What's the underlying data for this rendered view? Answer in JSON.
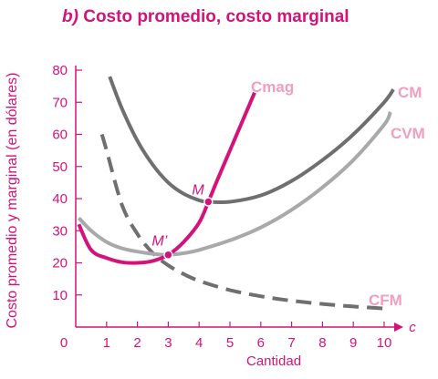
{
  "chart_data": {
    "type": "line",
    "title_prefix": "b)",
    "title": "Costo promedio, costo marginal",
    "xlabel": "Cantidad",
    "ylabel": "Costo promedio y marginal (en dólares)",
    "axis_end_label": "c",
    "xlim": [
      0,
      10.5
    ],
    "ylim": [
      0,
      80
    ],
    "x_ticks": [
      "0",
      "1",
      "2",
      "3",
      "4",
      "5",
      "6",
      "7",
      "8",
      "9",
      "10"
    ],
    "y_ticks": [
      "10",
      "20",
      "30",
      "40",
      "50",
      "60",
      "70",
      "80"
    ],
    "grid": false,
    "series": [
      {
        "name": "Cmag",
        "color": "#d4137a",
        "style": "solid",
        "points": [
          [
            0.1,
            32
          ],
          [
            0.5,
            24
          ],
          [
            1.0,
            21.5
          ],
          [
            1.5,
            20.2
          ],
          [
            2.0,
            20
          ],
          [
            2.5,
            20.6
          ],
          [
            3.0,
            22.5
          ],
          [
            3.5,
            26.5
          ],
          [
            4.0,
            32.5
          ],
          [
            4.3,
            39
          ],
          [
            4.6,
            46
          ],
          [
            5.0,
            55
          ],
          [
            5.4,
            64
          ],
          [
            5.8,
            73
          ]
        ]
      },
      {
        "name": "CM",
        "color": "#6f6f72",
        "style": "solid",
        "points": [
          [
            1.1,
            78
          ],
          [
            1.5,
            68
          ],
          [
            2.0,
            58
          ],
          [
            2.5,
            50.5
          ],
          [
            3.0,
            45
          ],
          [
            3.5,
            41.5
          ],
          [
            4.0,
            39.5
          ],
          [
            4.3,
            39
          ],
          [
            5.0,
            39
          ],
          [
            6.0,
            41
          ],
          [
            7.0,
            45.5
          ],
          [
            8.0,
            52
          ],
          [
            9.0,
            60
          ],
          [
            10.0,
            70
          ],
          [
            10.3,
            74
          ]
        ]
      },
      {
        "name": "CVM",
        "color": "#a8a9ab",
        "style": "solid",
        "points": [
          [
            0.1,
            34
          ],
          [
            0.5,
            30
          ],
          [
            1.0,
            26.5
          ],
          [
            1.5,
            24.5
          ],
          [
            2.0,
            23.5
          ],
          [
            2.5,
            22.8
          ],
          [
            3.0,
            22.5
          ],
          [
            3.5,
            23
          ],
          [
            4.0,
            24
          ],
          [
            5.0,
            27
          ],
          [
            6.0,
            31
          ],
          [
            7.0,
            36.5
          ],
          [
            8.0,
            43.5
          ],
          [
            9.0,
            52
          ],
          [
            10.0,
            63
          ],
          [
            10.2,
            67
          ]
        ]
      },
      {
        "name": "CFM",
        "color": "#6f6f72",
        "style": "dashed",
        "points": [
          [
            0.85,
            60
          ],
          [
            1.0,
            55
          ],
          [
            1.5,
            38
          ],
          [
            2.0,
            29
          ],
          [
            2.5,
            23
          ],
          [
            3.0,
            19.2
          ],
          [
            3.5,
            16.5
          ],
          [
            4.0,
            14.4
          ],
          [
            5.0,
            11.5
          ],
          [
            6.0,
            9.6
          ],
          [
            7.0,
            8.2
          ],
          [
            8.0,
            7.2
          ],
          [
            9.0,
            6.4
          ],
          [
            10.0,
            5.8
          ]
        ]
      }
    ],
    "points": [
      {
        "label": "M",
        "x": 4.3,
        "y": 39
      },
      {
        "label": "M’",
        "x": 3.0,
        "y": 22.5
      }
    ]
  }
}
